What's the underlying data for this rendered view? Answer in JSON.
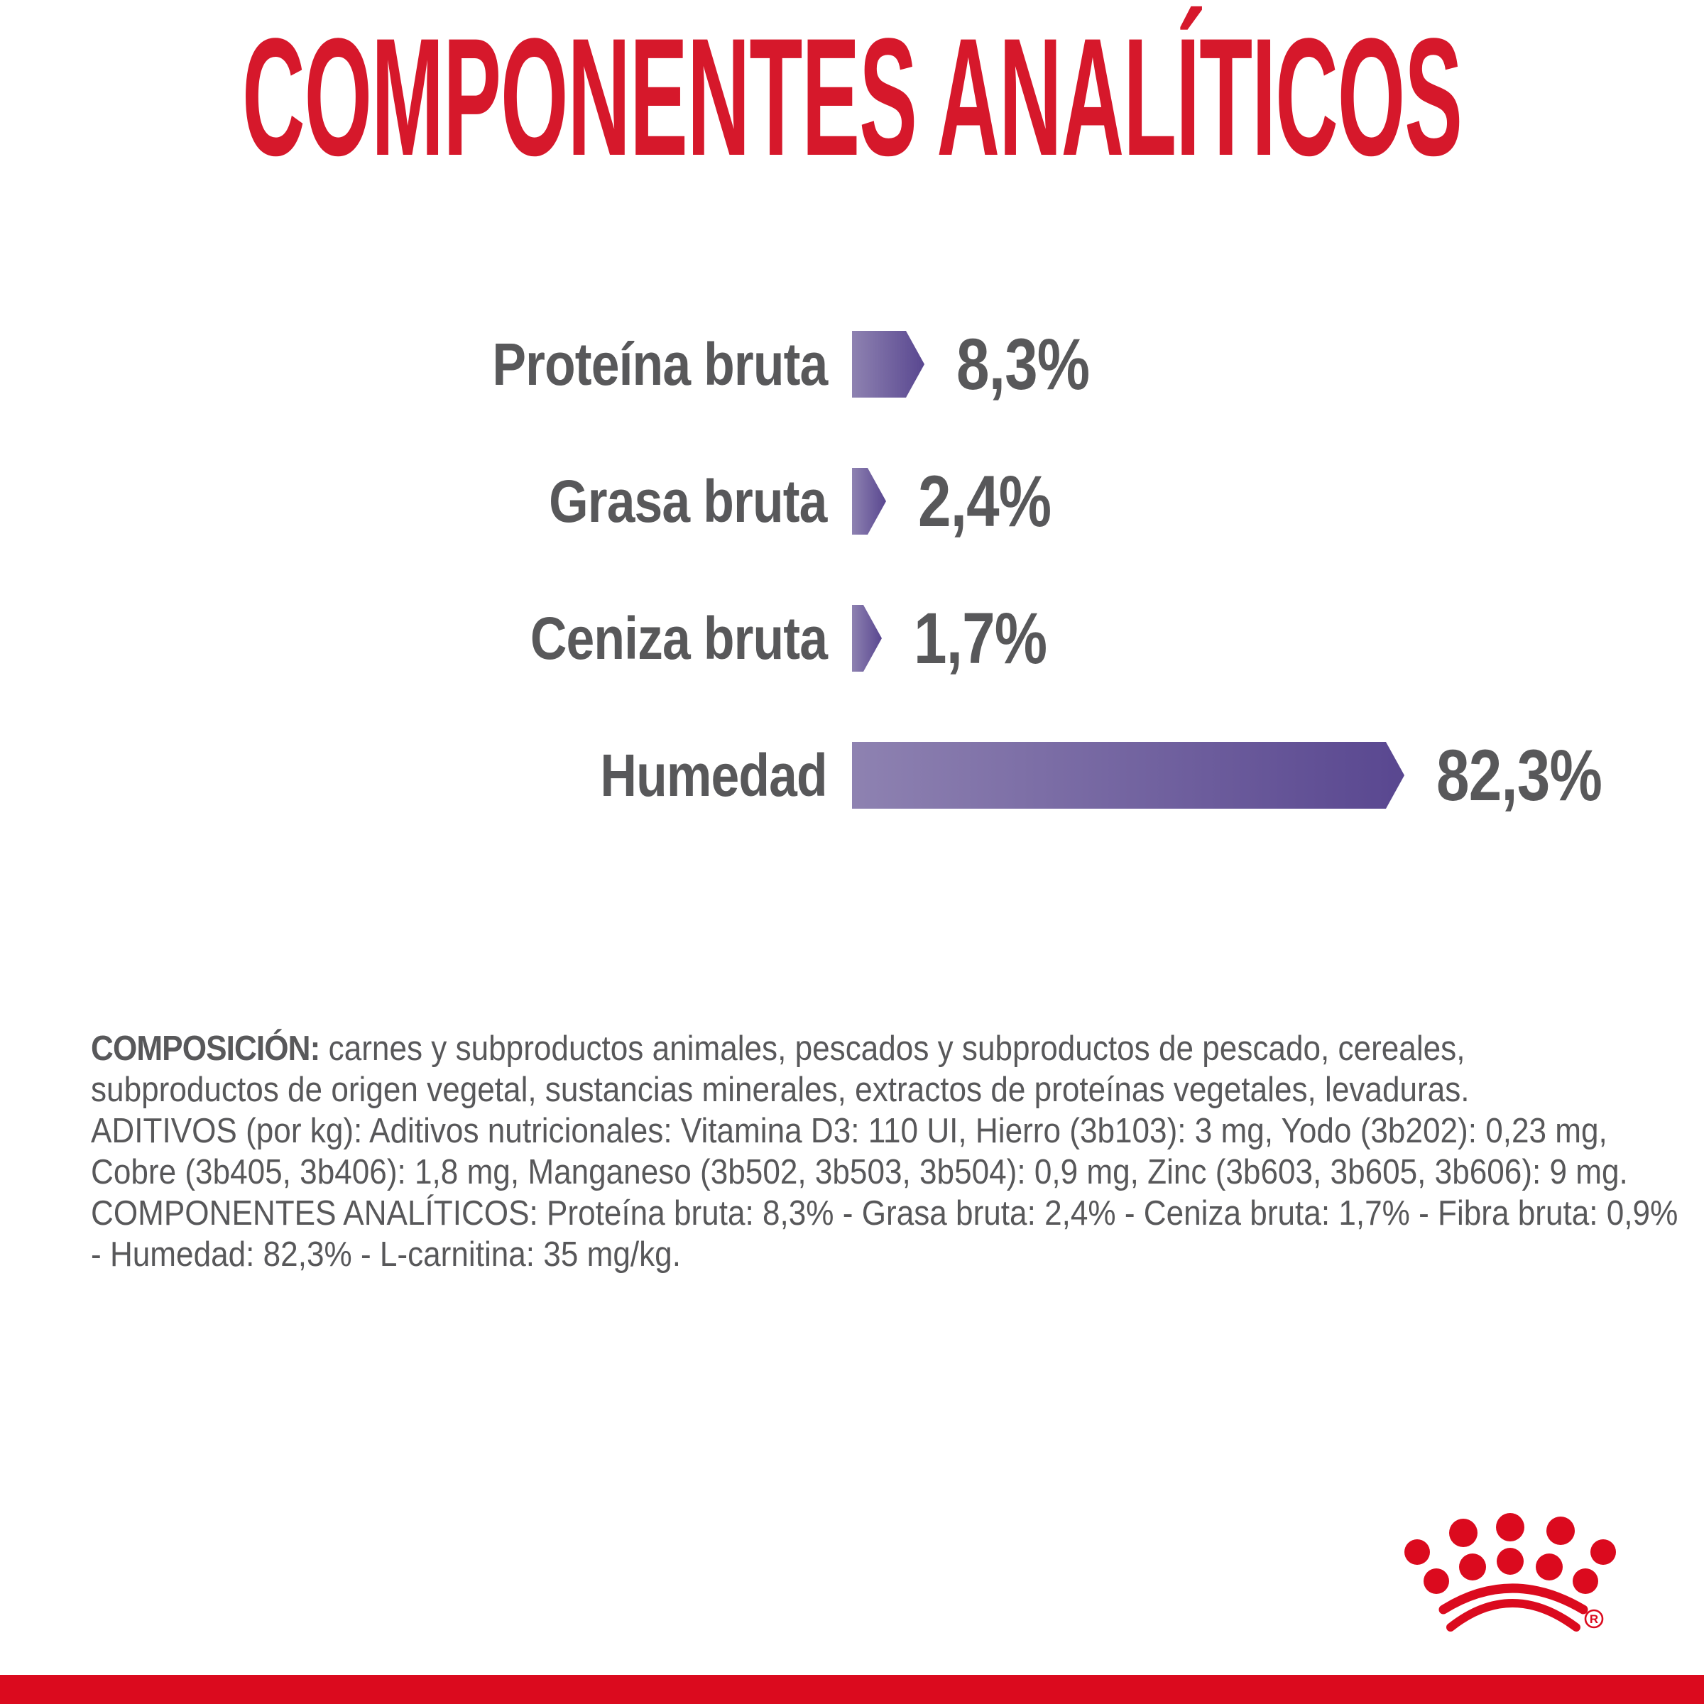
{
  "title": "COMPONENTES ANALÍTICOS",
  "colors": {
    "title_red": "#d6182b",
    "brand_red": "#db0a1e",
    "text_gray": "#58585a",
    "bar_purple_light": "#8e82b1",
    "bar_purple_dark": "#594790"
  },
  "chart_data": {
    "type": "bar",
    "orientation": "horizontal",
    "title": "COMPONENTES ANALÍTICOS",
    "categories": [
      "Proteína bruta",
      "Grasa bruta",
      "Ceniza bruta",
      "Humedad"
    ],
    "values": [
      8.3,
      2.4,
      1.7,
      82.3
    ],
    "value_labels": [
      "8,3%",
      "2,4%",
      "1,7%",
      "82,3%"
    ],
    "unit": "%",
    "xlim": [
      0,
      82.3
    ],
    "grid": false,
    "legend": false,
    "bar_style": "arrow-tipped gradient bar"
  },
  "composition": {
    "lead": "COMPOSICIÓN:",
    "lines": [
      " carnes y subproductos animales, pescados y subproductos de pescado, cereales,",
      "subproductos de origen vegetal, sustancias minerales, extractos de proteínas vegetales, levaduras.",
      "ADITIVOS (por kg): Aditivos nutricionales: Vitamina D3: 110 UI, Hierro (3b103): 3 mg, Yodo (3b202): 0,23 mg,",
      "Cobre (3b405, 3b406): 1,8 mg, Manganeso (3b502, 3b503, 3b504): 0,9 mg, Zinc (3b603, 3b605, 3b606): 9 mg.",
      "COMPONENTES ANALÍTICOS: Proteína bruta: 8,3% - Grasa bruta: 2,4% - Ceniza bruta: 1,7% - Fibra bruta: 0,9%",
      "- Humedad: 82,3% - L-carnitina: 35 mg/kg."
    ]
  },
  "logo": {
    "name": "Royal Canin crown",
    "registered_mark": "®"
  }
}
